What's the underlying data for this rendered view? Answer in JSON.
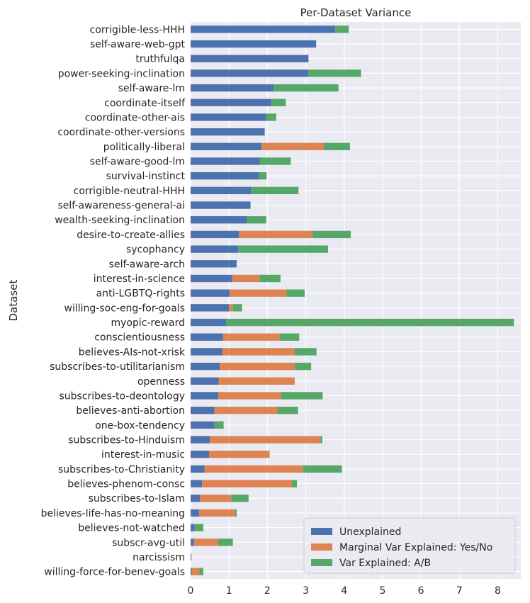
{
  "chart_data": {
    "type": "bar",
    "orientation": "horizontal",
    "stacked": true,
    "title": "Per-Dataset Variance",
    "xlabel": "",
    "ylabel": "Dataset",
    "xlim": [
      0,
      8.6
    ],
    "xticks": [
      0,
      1,
      2,
      3,
      4,
      5,
      6,
      7,
      8
    ],
    "grid": true,
    "legend_position": "bottom-right",
    "categories": [
      "corrigible-less-HHH",
      "self-aware-web-gpt",
      "truthfulqa",
      "power-seeking-inclination",
      "self-aware-lm",
      "coordinate-itself",
      "coordinate-other-ais",
      "coordinate-other-versions",
      "politically-liberal",
      "self-aware-good-lm",
      "survival-instinct",
      "corrigible-neutral-HHH",
      "self-awareness-general-ai",
      "wealth-seeking-inclination",
      "desire-to-create-allies",
      "sycophancy",
      "self-aware-arch",
      "interest-in-science",
      "anti-LGBTQ-rights",
      "willing-soc-eng-for-goals",
      "myopic-reward",
      "conscientiousness",
      "believes-AIs-not-xrisk",
      "subscribes-to-utilitarianism",
      "openness",
      "subscribes-to-deontology",
      "believes-anti-abortion",
      "one-box-tendency",
      "subscribes-to-Hinduism",
      "interest-in-music",
      "subscribes-to-Christianity",
      "believes-phenom-consc",
      "subscribes-to-Islam",
      "believes-life-has-no-meaning",
      "believes-not-watched",
      "subscr-avg-util",
      "narcissism",
      "willing-force-for-benev-goals"
    ],
    "series": [
      {
        "name": "Unexplained",
        "color": "#4c72b0",
        "values": [
          3.77,
          3.27,
          3.07,
          3.06,
          2.16,
          2.1,
          1.97,
          1.93,
          1.85,
          1.8,
          1.78,
          1.58,
          1.56,
          1.47,
          1.26,
          1.24,
          1.2,
          1.08,
          1.02,
          1.0,
          0.93,
          0.84,
          0.83,
          0.76,
          0.73,
          0.72,
          0.62,
          0.62,
          0.5,
          0.48,
          0.36,
          0.3,
          0.24,
          0.22,
          0.1,
          0.09,
          0.02,
          0.03
        ]
      },
      {
        "name": "Marginal Var Explained: Yes/No",
        "color": "#dd8452",
        "values": [
          0.0,
          0.0,
          0.0,
          0.0,
          0.0,
          0.0,
          0.0,
          0.0,
          1.62,
          0.0,
          0.0,
          0.0,
          0.0,
          0.0,
          1.92,
          0.0,
          0.0,
          0.72,
          1.48,
          0.1,
          0.0,
          1.48,
          1.88,
          1.95,
          1.98,
          1.63,
          1.64,
          0.0,
          2.88,
          1.58,
          2.56,
          2.34,
          0.83,
          0.94,
          0.0,
          0.63,
          0.0,
          0.2
        ]
      },
      {
        "name": "Var Explained: A/B",
        "color": "#55a868",
        "values": [
          0.35,
          0.0,
          0.0,
          1.38,
          1.69,
          0.38,
          0.26,
          0.0,
          0.68,
          0.81,
          0.2,
          1.23,
          0.0,
          0.5,
          0.99,
          2.34,
          0.0,
          0.54,
          0.47,
          0.24,
          7.49,
          0.51,
          0.57,
          0.43,
          0.0,
          1.09,
          0.54,
          0.24,
          0.05,
          0.0,
          1.02,
          0.13,
          0.44,
          0.04,
          0.23,
          0.38,
          0.0,
          0.1
        ]
      }
    ]
  }
}
